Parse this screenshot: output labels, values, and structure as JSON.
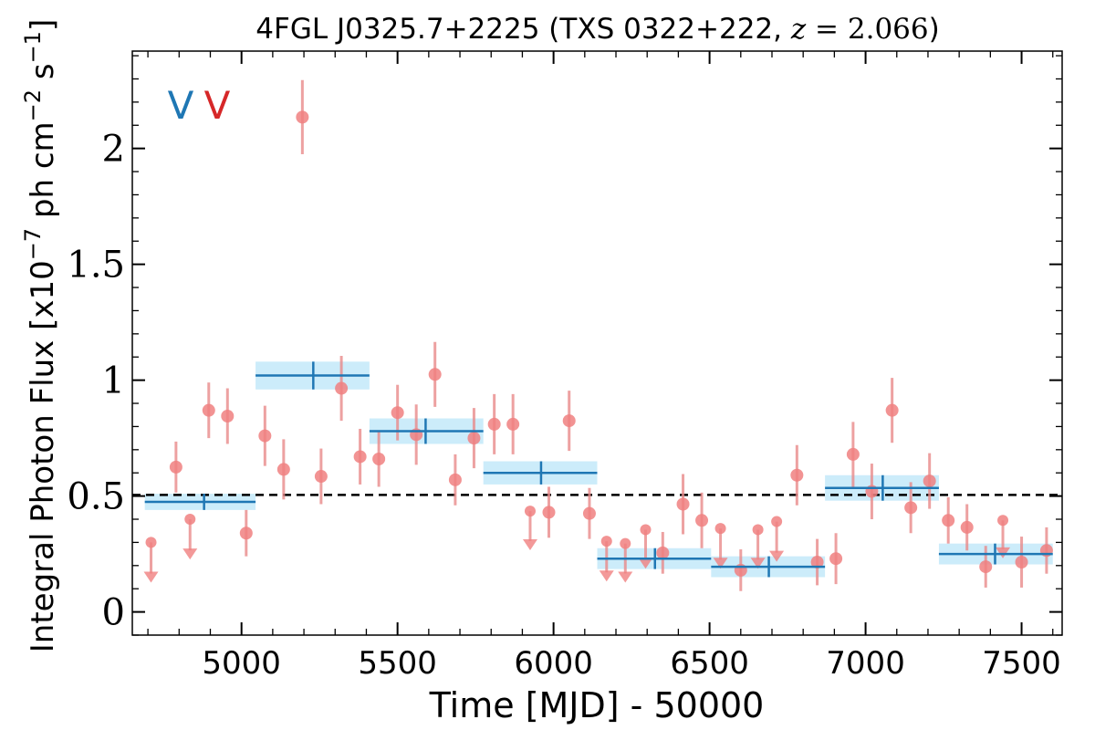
{
  "chart_data": {
    "type": "scatter",
    "title": "4FGL J0325.7+2225 (TXS 0322+222, z = 2.066)",
    "title_parts": {
      "prefix": "4FGL J0325.7+2225 (TXS 0322+222, ",
      "z_var": "z",
      "z_eq": " = ",
      "z_val": "2.066",
      "suffix": ")"
    },
    "xlabel": "Time [MJD] - 50000",
    "ylabel": "Integral Photon Flux [x10",
    "ylabel_exp": "−7",
    "ylabel_mid": " ph cm",
    "ylabel_exp2": "−2",
    "ylabel_end": " s",
    "ylabel_exp3": "−1",
    "ylabel_close": "]",
    "xlim": [
      4650,
      7630
    ],
    "ylim": [
      -0.1,
      2.42
    ],
    "xticks": [
      5000,
      5500,
      6000,
      6500,
      7000,
      7500
    ],
    "xtick_labels": [
      "5000",
      "5500",
      "6000",
      "6500",
      "7000",
      "7500"
    ],
    "yticks": [
      0,
      0.5,
      1,
      1.5,
      2
    ],
    "ytick_labels": [
      "0",
      "0.5",
      "1",
      "1.5",
      "2"
    ],
    "reference_line": {
      "y": 0.505,
      "style": "dashed"
    },
    "markers": [
      {
        "label": "V",
        "color": "#1f77b4"
      },
      {
        "label": "V",
        "color": "#d62728"
      }
    ],
    "colors": {
      "points": "#f08080",
      "errbars": "#e88a8a",
      "blocks": "#1f77b4",
      "block_fill": "#ccecfa",
      "refline": "#000000"
    },
    "series": [
      {
        "kind": "monthly_detections",
        "points": [
          {
            "x": 4790,
            "y": 0.625,
            "err": 0.11
          },
          {
            "x": 4895,
            "y": 0.87,
            "err": 0.12
          },
          {
            "x": 4955,
            "y": 0.845,
            "err": 0.12
          },
          {
            "x": 5015,
            "y": 0.34,
            "err": 0.1
          },
          {
            "x": 5075,
            "y": 0.76,
            "err": 0.13
          },
          {
            "x": 5135,
            "y": 0.615,
            "err": 0.13
          },
          {
            "x": 5195,
            "y": 2.135,
            "err": 0.16
          },
          {
            "x": 5255,
            "y": 0.585,
            "err": 0.12
          },
          {
            "x": 5320,
            "y": 0.965,
            "err": 0.14
          },
          {
            "x": 5380,
            "y": 0.67,
            "err": 0.12
          },
          {
            "x": 5440,
            "y": 0.66,
            "err": 0.12
          },
          {
            "x": 5500,
            "y": 0.86,
            "err": 0.12
          },
          {
            "x": 5560,
            "y": 0.765,
            "err": 0.13
          },
          {
            "x": 5620,
            "y": 1.025,
            "err": 0.14
          },
          {
            "x": 5685,
            "y": 0.57,
            "err": 0.11
          },
          {
            "x": 5745,
            "y": 0.75,
            "err": 0.13
          },
          {
            "x": 5810,
            "y": 0.81,
            "err": 0.13
          },
          {
            "x": 5870,
            "y": 0.81,
            "err": 0.13
          },
          {
            "x": 5985,
            "y": 0.43,
            "err": 0.11
          },
          {
            "x": 6050,
            "y": 0.825,
            "err": 0.13
          },
          {
            "x": 6115,
            "y": 0.425,
            "err": 0.11
          },
          {
            "x": 6350,
            "y": 0.255,
            "err": 0.09
          },
          {
            "x": 6415,
            "y": 0.465,
            "err": 0.13
          },
          {
            "x": 6475,
            "y": 0.395,
            "err": 0.12
          },
          {
            "x": 6600,
            "y": 0.18,
            "err": 0.09
          },
          {
            "x": 6780,
            "y": 0.59,
            "err": 0.13
          },
          {
            "x": 6845,
            "y": 0.215,
            "err": 0.1
          },
          {
            "x": 6905,
            "y": 0.23,
            "err": 0.11
          },
          {
            "x": 6960,
            "y": 0.68,
            "err": 0.14
          },
          {
            "x": 7020,
            "y": 0.52,
            "err": 0.12
          },
          {
            "x": 7085,
            "y": 0.87,
            "err": 0.14
          },
          {
            "x": 7145,
            "y": 0.45,
            "err": 0.11
          },
          {
            "x": 7205,
            "y": 0.565,
            "err": 0.12
          },
          {
            "x": 7265,
            "y": 0.395,
            "err": 0.1
          },
          {
            "x": 7325,
            "y": 0.365,
            "err": 0.1
          },
          {
            "x": 7385,
            "y": 0.195,
            "err": 0.09
          },
          {
            "x": 7500,
            "y": 0.215,
            "err": 0.11
          },
          {
            "x": 7580,
            "y": 0.265,
            "err": 0.1
          }
        ]
      },
      {
        "kind": "monthly_upper_limits",
        "points": [
          {
            "x": 4710,
            "y": 0.3,
            "arrow_to": 0.15
          },
          {
            "x": 4835,
            "y": 0.4,
            "arrow_to": 0.25
          },
          {
            "x": 5925,
            "y": 0.435,
            "arrow_to": 0.29
          },
          {
            "x": 6170,
            "y": 0.305,
            "arrow_to": 0.155
          },
          {
            "x": 6230,
            "y": 0.295,
            "arrow_to": 0.15
          },
          {
            "x": 6295,
            "y": 0.355,
            "arrow_to": 0.21
          },
          {
            "x": 6535,
            "y": 0.36,
            "arrow_to": 0.21
          },
          {
            "x": 6655,
            "y": 0.355,
            "arrow_to": 0.21
          },
          {
            "x": 6715,
            "y": 0.39,
            "arrow_to": 0.24
          },
          {
            "x": 7440,
            "y": 0.395,
            "arrow_to": 0.255
          }
        ]
      },
      {
        "kind": "bayesian_blocks",
        "blocks": [
          {
            "x0": 4690,
            "x1": 5045,
            "xmid": 4880,
            "y": 0.475,
            "err": 0.035
          },
          {
            "x0": 5045,
            "x1": 5410,
            "xmid": 5230,
            "y": 1.02,
            "err": 0.06
          },
          {
            "x0": 5410,
            "x1": 5775,
            "xmid": 5590,
            "y": 0.78,
            "err": 0.055
          },
          {
            "x0": 5775,
            "x1": 6140,
            "xmid": 5960,
            "y": 0.6,
            "err": 0.05
          },
          {
            "x0": 6140,
            "x1": 6505,
            "xmid": 6325,
            "y": 0.23,
            "err": 0.045
          },
          {
            "x0": 6505,
            "x1": 6870,
            "xmid": 6690,
            "y": 0.195,
            "err": 0.045
          },
          {
            "x0": 6870,
            "x1": 7235,
            "xmid": 7055,
            "y": 0.535,
            "err": 0.055
          },
          {
            "x0": 7235,
            "x1": 7600,
            "xmid": 7415,
            "y": 0.25,
            "err": 0.045
          }
        ]
      }
    ]
  }
}
